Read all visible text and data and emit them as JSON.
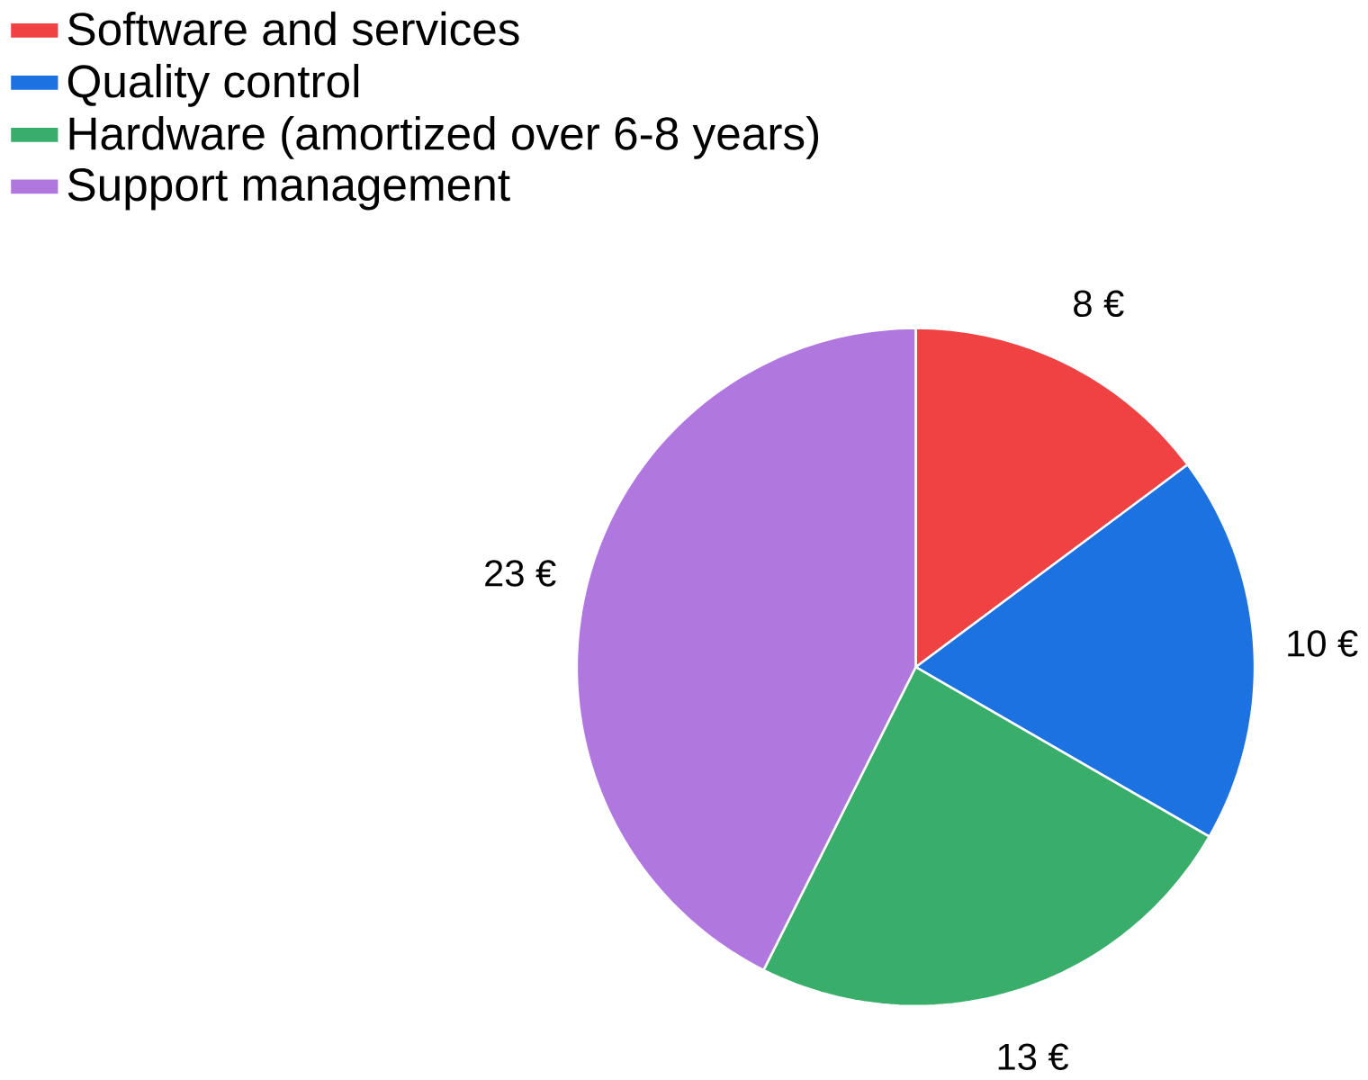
{
  "chart_data": {
    "type": "pie",
    "categories": [
      "Software and services",
      "Quality control",
      "Hardware (amortized over 6-8 years)",
      "Support management"
    ],
    "values": [
      8,
      10,
      13,
      23
    ],
    "colors": [
      "#f04242",
      "#1b72e0",
      "#38ae6a",
      "#b078de"
    ],
    "value_labels": [
      "8 €",
      "10 €",
      "13 €",
      "23 €"
    ],
    "legend": "top left"
  }
}
